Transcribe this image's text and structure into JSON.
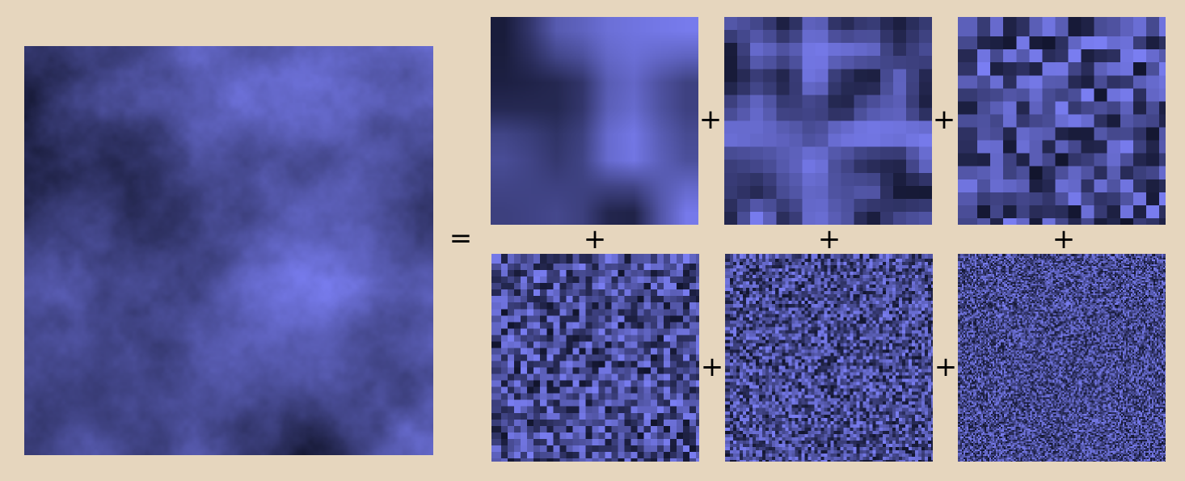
{
  "colors": {
    "background": "#e6d6be",
    "noise_dark": "#11142c",
    "noise_light": "#7a7ef2"
  },
  "symbols": {
    "equals": "=",
    "plus": "+"
  },
  "diagram": {
    "result": {
      "name": "summed-noise-image"
    },
    "octaves": [
      {
        "name": "octave-1"
      },
      {
        "name": "octave-2"
      },
      {
        "name": "octave-3"
      },
      {
        "name": "octave-4"
      },
      {
        "name": "octave-5"
      },
      {
        "name": "octave-6"
      }
    ]
  }
}
